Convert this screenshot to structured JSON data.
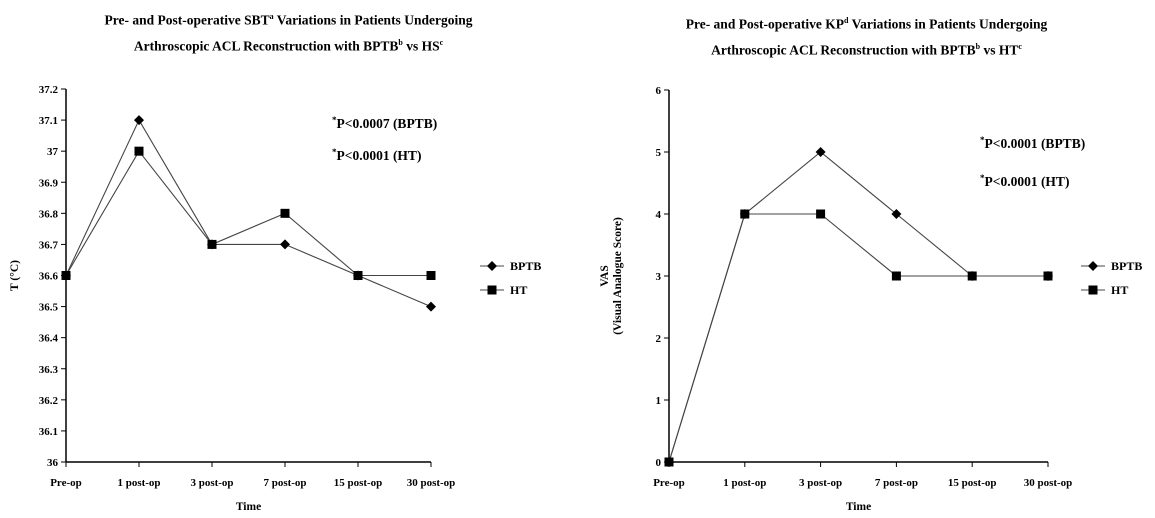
{
  "charts": [
    {
      "title_line1": "Pre- and Post-operative SBT",
      "title_sup1": "a",
      "title_mid": " Variations in Patients Undergoing",
      "title_line2": "Arthroscopic ACL Reconstruction with BPTB",
      "title_sup2": "b",
      "title_end": " vs HS",
      "title_sup3": "c",
      "annotations": [
        {
          "sup": "*",
          "text": "P<0.0007 (BPTB)"
        },
        {
          "sup": "*",
          "text": "P<0.0001 (HT)"
        }
      ]
    },
    {
      "title_line1": "Pre- and Post-operative KP",
      "title_sup1": "d",
      "title_mid": " Variations in Patients Undergoing",
      "title_line2": "Arthroscopic ACL Reconstruction with BPTB",
      "title_sup2": "b",
      "title_end": " vs HT",
      "title_sup3": "c",
      "annotations": [
        {
          "sup": "*",
          "text": "P<0.0001 (BPTB)"
        },
        {
          "sup": "*",
          "text": "P<0.0001 (HT)"
        }
      ]
    }
  ],
  "chart_data": [
    {
      "type": "line",
      "categories": [
        "Pre-op",
        "1 post-op",
        "3 post-op",
        "7 post-op",
        "15 post-op",
        "30 post-op"
      ],
      "xlabel": "Time",
      "ylabel": "T (°C)",
      "ylabel2": "",
      "ylim": [
        36,
        37.2
      ],
      "yticks": [
        "36",
        "36.1",
        "36.2",
        "36.3",
        "36.4",
        "36.5",
        "36.6",
        "36.7",
        "36.8",
        "36.9",
        "37",
        "37.1",
        "37.2"
      ],
      "legend": "right",
      "grid": false,
      "series": [
        {
          "name": "BPTB",
          "marker": "diamond",
          "values": [
            36.6,
            37.1,
            36.7,
            36.7,
            36.6,
            36.5
          ]
        },
        {
          "name": "HT",
          "marker": "square",
          "values": [
            36.6,
            37.0,
            36.7,
            36.8,
            36.6,
            36.6
          ]
        }
      ]
    },
    {
      "type": "line",
      "categories": [
        "Pre-op",
        "1 post-op",
        "3 post-op",
        "7 post-op",
        "15 post-op",
        "30 post-op"
      ],
      "xlabel": "Time",
      "ylabel": "VAS",
      "ylabel2": "(Visual Analogue Score)",
      "ylim": [
        0,
        6
      ],
      "yticks": [
        "0",
        "1",
        "2",
        "3",
        "4",
        "5",
        "6"
      ],
      "legend": "right",
      "grid": false,
      "series": [
        {
          "name": "BPTB",
          "marker": "diamond",
          "values": [
            0,
            4,
            5,
            4,
            3,
            3
          ]
        },
        {
          "name": "HT",
          "marker": "square",
          "values": [
            0,
            4,
            4,
            3,
            3,
            3
          ]
        }
      ]
    }
  ]
}
